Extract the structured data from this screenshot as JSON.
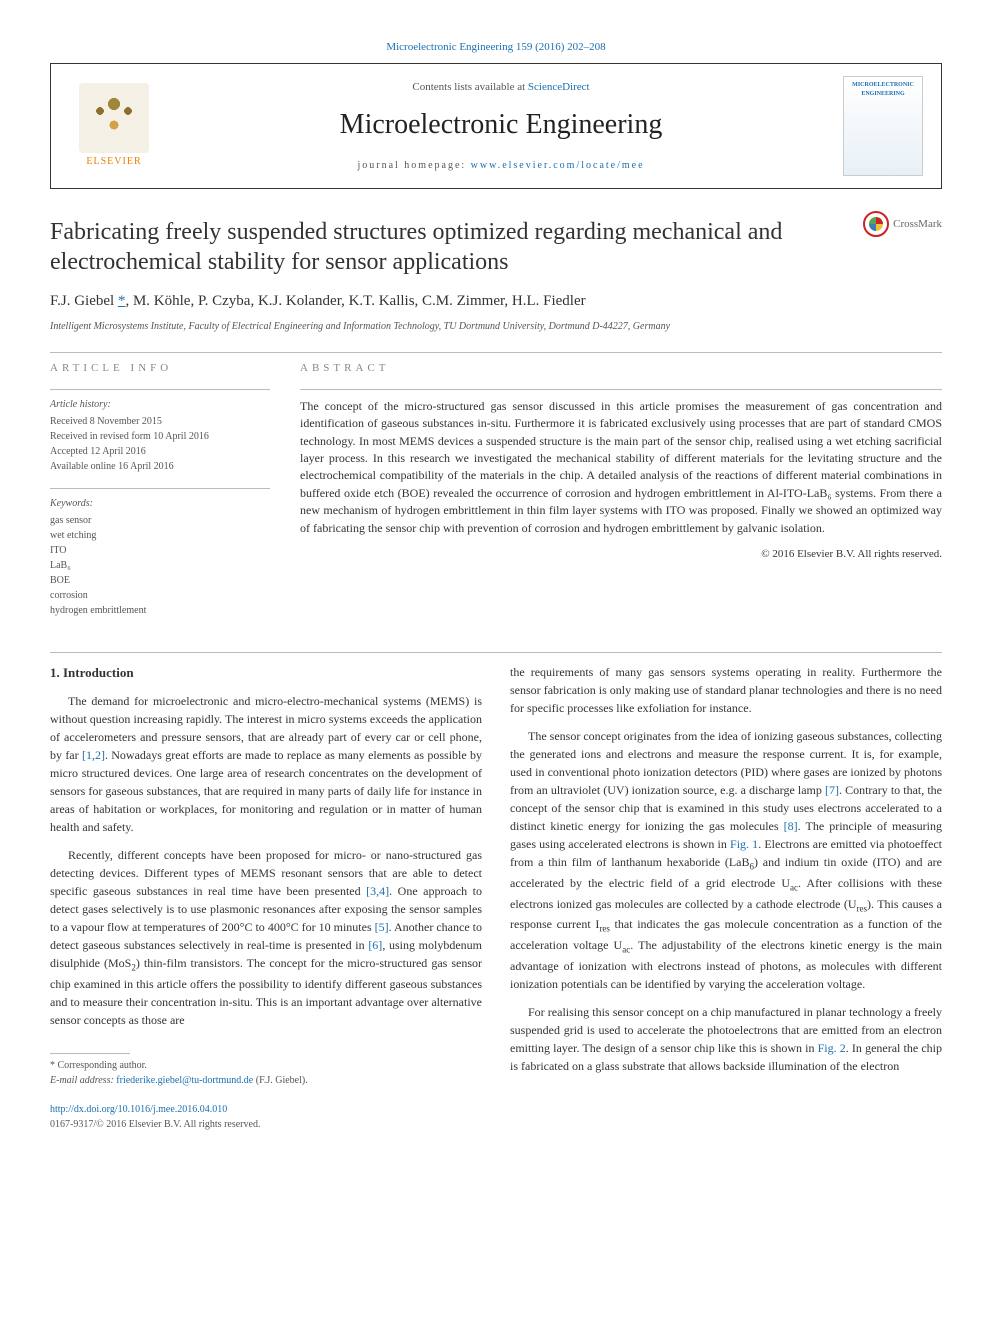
{
  "top_citation": "Microelectronic Engineering 159 (2016) 202–208",
  "header": {
    "publisher_name": "ELSEVIER",
    "contents_prefix": "Contents lists available at ",
    "contents_link": "ScienceDirect",
    "journal_name": "Microelectronic Engineering",
    "homepage_prefix": "journal homepage: ",
    "homepage_url": "www.elsevier.com/locate/mee",
    "cover_title": "MICROELECTRONIC ENGINEERING"
  },
  "crossmark_label": "CrossMark",
  "article": {
    "title": "Fabricating freely suspended structures optimized regarding mechanical and electrochemical stability for sensor applications",
    "authors": "F.J. Giebel *, M. Köhle, P. Czyba, K.J. Kolander, K.T. Kallis, C.M. Zimmer, H.L. Fiedler",
    "affiliation": "Intelligent Microsystems Institute, Faculty of Electrical Engineering and Information Technology, TU Dortmund University, Dortmund D-44227, Germany"
  },
  "info": {
    "section_label": "article info",
    "history_heading": "Article history:",
    "history": [
      "Received 8 November 2015",
      "Received in revised form 10 April 2016",
      "Accepted 12 April 2016",
      "Available online 16 April 2016"
    ],
    "keywords_heading": "Keywords:",
    "keywords": [
      "gas sensor",
      "wet etching",
      "ITO",
      "LaB₆",
      "BOE",
      "corrosion",
      "hydrogen embrittlement"
    ]
  },
  "abstract": {
    "section_label": "abstract",
    "text": "The concept of the micro-structured gas sensor discussed in this article promises the measurement of gas concentration and identification of gaseous substances in-situ. Furthermore it is fabricated exclusively using processes that are part of standard CMOS technology. In most MEMS devices a suspended structure is the main part of the sensor chip, realised using a wet etching sacrificial layer process. In this research we investigated the mechanical stability of different materials for the levitating structure and the electrochemical compatibility of the materials in the chip. A detailed analysis of the reactions of different material combinations in buffered oxide etch (BOE) revealed the occurrence of corrosion and hydrogen embrittlement in Al-ITO-LaB₆ systems. From there a new mechanism of hydrogen embrittlement in thin film layer systems with ITO was proposed. Finally we showed an optimized way of fabricating the sensor chip with prevention of corrosion and hydrogen embrittlement by galvanic isolation.",
    "copyright": "© 2016 Elsevier B.V. All rights reserved."
  },
  "body": {
    "intro_heading": "1. Introduction",
    "left_paras": [
      "The demand for microelectronic and micro-electro-mechanical systems (MEMS) is without question increasing rapidly. The interest in micro systems exceeds the application of accelerometers and pressure sensors, that are already part of every car or cell phone, by far [1,2]. Nowadays great efforts are made to replace as many elements as possible by micro structured devices. One large area of research concentrates on the development of sensors for gaseous substances, that are required in many parts of daily life for instance in areas of habitation or workplaces, for monitoring and regulation or in matter of human health and safety.",
      "Recently, different concepts have been proposed for micro- or nano-structured gas detecting devices. Different types of MEMS resonant sensors that are able to detect specific gaseous substances in real time have been presented [3,4]. One approach to detect gases selectively is to use plasmonic resonances after exposing the sensor samples to a vapour flow at temperatures of 200°C to 400°C for 10 minutes [5]. Another chance to detect gaseous substances selectively in real-time is presented in [6], using molybdenum disulphide (MoS₂) thin-film transistors. The concept for the micro-structured gas sensor chip examined in this article offers the possibility to identify different gaseous substances and to measure their concentration in-situ. This is an important advantage over alternative sensor concepts as those are"
    ],
    "right_paras": [
      "the requirements of many gas sensors systems operating in reality. Furthermore the sensor fabrication is only making use of standard planar technologies and there is no need for specific processes like exfoliation for instance.",
      "The sensor concept originates from the idea of ionizing gaseous substances, collecting the generated ions and electrons and measure the response current. It is, for example, used in conventional photo ionization detectors (PID) where gases are ionized by photons from an ultraviolet (UV) ionization source, e.g. a discharge lamp [7]. Contrary to that, the concept of the sensor chip that is examined in this study uses electrons accelerated to a distinct kinetic energy for ionizing the gas molecules [8]. The principle of measuring gases using accelerated electrons is shown in Fig. 1. Electrons are emitted via photoeffect from a thin film of lanthanum hexaboride (LaB₆) and indium tin oxide (ITO) and are accelerated by the electric field of a grid electrode Uac. After collisions with these electrons ionized gas molecules are collected by a cathode electrode (Ures). This causes a response current Ires that indicates the gas molecule concentration as a function of the acceleration voltage Uac. The adjustability of the electrons kinetic energy is the main advantage of ionization with electrons instead of photons, as molecules with different ionization potentials can be identified by varying the acceleration voltage.",
      "For realising this sensor concept on a chip manufactured in planar technology a freely suspended grid is used to accelerate the photoelectrons that are emitted from an electron emitting layer. The design of a sensor chip like this is shown in Fig. 2. In general the chip is fabricated on a glass substrate that allows backside illumination of the electron"
    ]
  },
  "footer": {
    "corresponding": "* Corresponding author.",
    "email_label": "E-mail address: ",
    "email": "friederike.giebel@tu-dortmund.de",
    "email_suffix": " (F.J. Giebel).",
    "doi": "http://dx.doi.org/10.1016/j.mee.2016.04.010",
    "issn": "0167-9317/© 2016 Elsevier B.V. All rights reserved."
  },
  "colors": {
    "link": "#1a6fb0",
    "text": "#333333",
    "muted": "#555555",
    "rule": "#bbbbbb",
    "orange": "#ed7e00"
  }
}
